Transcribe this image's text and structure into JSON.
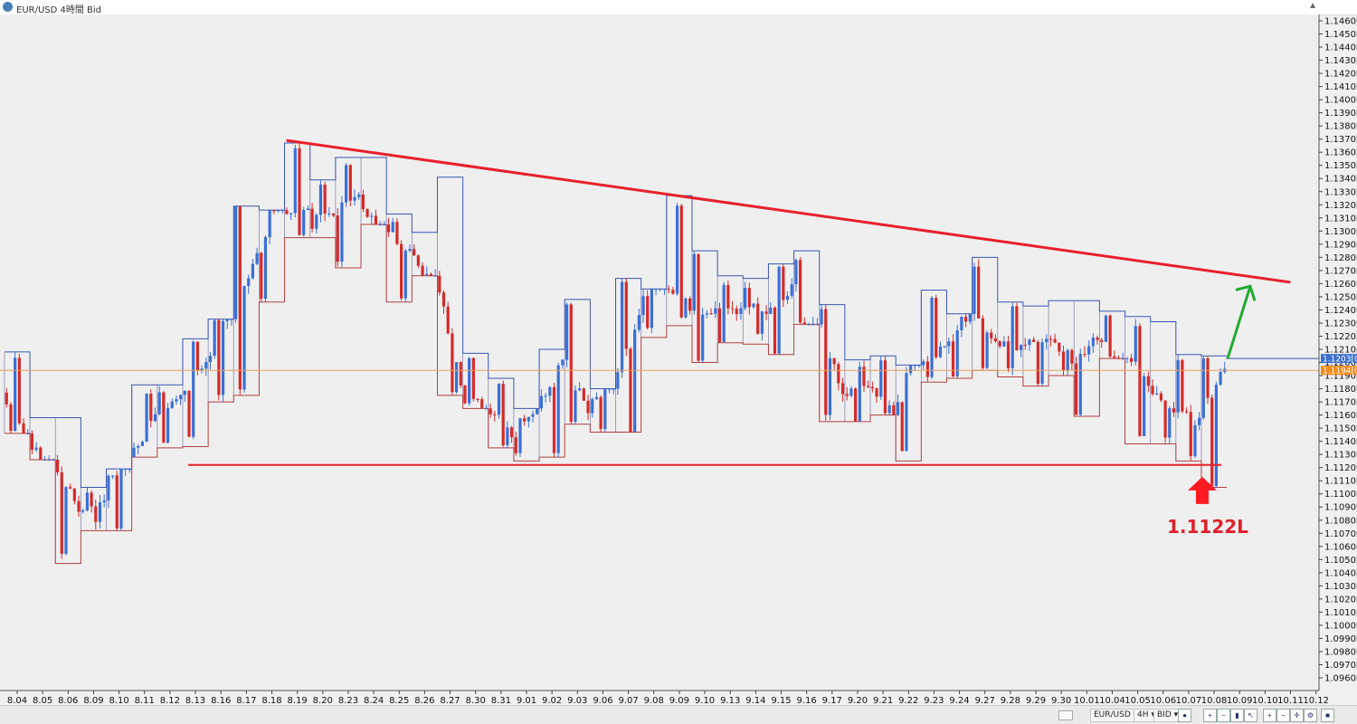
{
  "window": {
    "title": "EUR/USD 4時間 Bid"
  },
  "annotations": {
    "level_label": "1.1122L"
  },
  "statusbar": {
    "symbol": "EUR/USD ▾",
    "timeframe": "4H ▾",
    "price_type": "BID ▾"
  },
  "colors": {
    "bull": "#3b6fd6",
    "bear": "#d42a2a",
    "trendline": "#e8202a",
    "arrow_up": "#22aa33",
    "arrow_down": "#ff1a22",
    "price_line": "#e8a25a",
    "box_high": "#3a55b0",
    "box_low": "#b04040"
  },
  "chart_data": {
    "type": "candlestick",
    "symbol": "EUR/USD",
    "timeframe": "4H",
    "price_axis": {
      "min": 1.096,
      "max": 1.146,
      "ticks": [
        "1.1460[0",
        "1.1450[0",
        "1.1440[0",
        "1.1430[0",
        "1.1420[0",
        "1.1410[0",
        "1.1400[0",
        "1.1390[0",
        "1.1380[0",
        "1.1370[0",
        "1.1360[0",
        "1.1350[0",
        "1.1340[0",
        "1.1330[0",
        "1.1320[0",
        "1.1310[0",
        "1.1300[0",
        "1.1290[0",
        "1.1280[0",
        "1.1270[0",
        "1.1260[0",
        "1.1250[0",
        "1.1240[0",
        "1.1230[0",
        "1.1220[0",
        "1.1210[0",
        "1.1200[0",
        "1.1190[0",
        "1.1180[0",
        "1.1170[0",
        "1.1160[0",
        "1.1150[0",
        "1.1140[0",
        "1.1130[0",
        "1.1120[0",
        "1.1110[0",
        "1.1100[0",
        "1.1090[0",
        "1.1080[0",
        "1.1070[0",
        "1.1060[0",
        "1.1050[0",
        "1.1040[0",
        "1.1030[0",
        "1.1020[0",
        "1.1010[0",
        "1.1000[0",
        "1.0990[0",
        "1.0980[0",
        "1.0970[0",
        "1.0960[0"
      ],
      "current_price_a": "1.1203[0",
      "current_price_b": "1.1194[0"
    },
    "time_axis": {
      "labels": [
        "8.04",
        "8.05",
        "8.06",
        "8.09",
        "8.10",
        "8.11",
        "8.12",
        "8.13",
        "8.16",
        "8.17",
        "8.18",
        "8.19",
        "8.20",
        "8.23",
        "8.24",
        "8.25",
        "8.26",
        "8.27",
        "8.30",
        "8.31",
        "9.01",
        "9.02",
        "9.03",
        "9.06",
        "9.07",
        "9.08",
        "9.09",
        "9.10",
        "9.13",
        "9.14",
        "9.15",
        "9.16",
        "9.17",
        "9.20",
        "9.21",
        "9.22",
        "9.23",
        "9.24",
        "9.27",
        "9.28",
        "9.29",
        "9.30",
        "10.01",
        "10.04",
        "10.05",
        "10.06",
        "10.07",
        "10.08",
        "10.09",
        "10.10",
        "10.11",
        "10.12"
      ]
    },
    "daily_ranges": [
      {
        "day": "8.04",
        "high": 1.1208,
        "low": 1.1146
      },
      {
        "day": "8.05",
        "high": 1.1158,
        "low": 1.1126
      },
      {
        "day": "8.06",
        "high": 1.1158,
        "low": 1.1047
      },
      {
        "day": "8.09",
        "high": 1.1105,
        "low": 1.1072
      },
      {
        "day": "8.10",
        "high": 1.1119,
        "low": 1.1072
      },
      {
        "day": "8.11",
        "high": 1.1183,
        "low": 1.1128
      },
      {
        "day": "8.12",
        "high": 1.1183,
        "low": 1.1135
      },
      {
        "day": "8.13",
        "high": 1.1218,
        "low": 1.1136
      },
      {
        "day": "8.16",
        "high": 1.1233,
        "low": 1.117
      },
      {
        "day": "8.17",
        "high": 1.1319,
        "low": 1.1175
      },
      {
        "day": "8.18",
        "high": 1.1316,
        "low": 1.1246
      },
      {
        "day": "8.19",
        "high": 1.1367,
        "low": 1.1295
      },
      {
        "day": "8.20",
        "high": 1.1339,
        "low": 1.1295
      },
      {
        "day": "8.23",
        "high": 1.1356,
        "low": 1.1272
      },
      {
        "day": "8.24",
        "high": 1.1356,
        "low": 1.1305
      },
      {
        "day": "8.25",
        "high": 1.1313,
        "low": 1.1246
      },
      {
        "day": "8.26",
        "high": 1.1299,
        "low": 1.1266
      },
      {
        "day": "8.27",
        "high": 1.1341,
        "low": 1.1175
      },
      {
        "day": "8.30",
        "high": 1.1207,
        "low": 1.1165
      },
      {
        "day": "8.31",
        "high": 1.1188,
        "low": 1.1135
      },
      {
        "day": "9.01",
        "high": 1.1165,
        "low": 1.1125
      },
      {
        "day": "9.02",
        "high": 1.121,
        "low": 1.1128
      },
      {
        "day": "9.03",
        "high": 1.1248,
        "low": 1.1153
      },
      {
        "day": "9.06",
        "high": 1.118,
        "low": 1.1147
      },
      {
        "day": "9.07",
        "high": 1.1264,
        "low": 1.1147
      },
      {
        "day": "9.08",
        "high": 1.1256,
        "low": 1.1219
      },
      {
        "day": "9.09",
        "high": 1.1327,
        "low": 1.1228
      },
      {
        "day": "9.10",
        "high": 1.1285,
        "low": 1.12
      },
      {
        "day": "9.13",
        "high": 1.1266,
        "low": 1.1215
      },
      {
        "day": "9.14",
        "high": 1.1264,
        "low": 1.1214
      },
      {
        "day": "9.15",
        "high": 1.1275,
        "low": 1.1206
      },
      {
        "day": "9.16",
        "high": 1.1285,
        "low": 1.1229
      },
      {
        "day": "9.17",
        "high": 1.1244,
        "low": 1.1155
      },
      {
        "day": "9.20",
        "high": 1.1202,
        "low": 1.1155
      },
      {
        "day": "9.21",
        "high": 1.1205,
        "low": 1.116
      },
      {
        "day": "9.22",
        "high": 1.1198,
        "low": 1.1125
      },
      {
        "day": "9.23",
        "high": 1.1255,
        "low": 1.1185
      },
      {
        "day": "9.24",
        "high": 1.1237,
        "low": 1.1188
      },
      {
        "day": "9.27",
        "high": 1.128,
        "low": 1.1194
      },
      {
        "day": "9.28",
        "high": 1.1246,
        "low": 1.1189
      },
      {
        "day": "9.29",
        "high": 1.1243,
        "low": 1.1182
      },
      {
        "day": "9.30",
        "high": 1.1247,
        "low": 1.119
      },
      {
        "day": "10.01",
        "high": 1.1247,
        "low": 1.1159
      },
      {
        "day": "10.04",
        "high": 1.1239,
        "low": 1.1203
      },
      {
        "day": "10.05",
        "high": 1.1235,
        "low": 1.1138
      },
      {
        "day": "10.06",
        "high": 1.1231,
        "low": 1.1138
      },
      {
        "day": "10.07",
        "high": 1.1206,
        "low": 1.1125
      },
      {
        "day": "10.08",
        "high": 1.1205,
        "low": 1.1105
      }
    ],
    "trendlines": [
      {
        "name": "resistance",
        "from": {
          "date": "8.19",
          "price": 1.1369
        },
        "to": {
          "date": "10.11",
          "price": 1.1261
        }
      },
      {
        "name": "support",
        "from": {
          "date": "8.13",
          "price": 1.1122
        },
        "to": {
          "date": "10.08",
          "price": 1.1122
        }
      }
    ],
    "grid": false
  }
}
